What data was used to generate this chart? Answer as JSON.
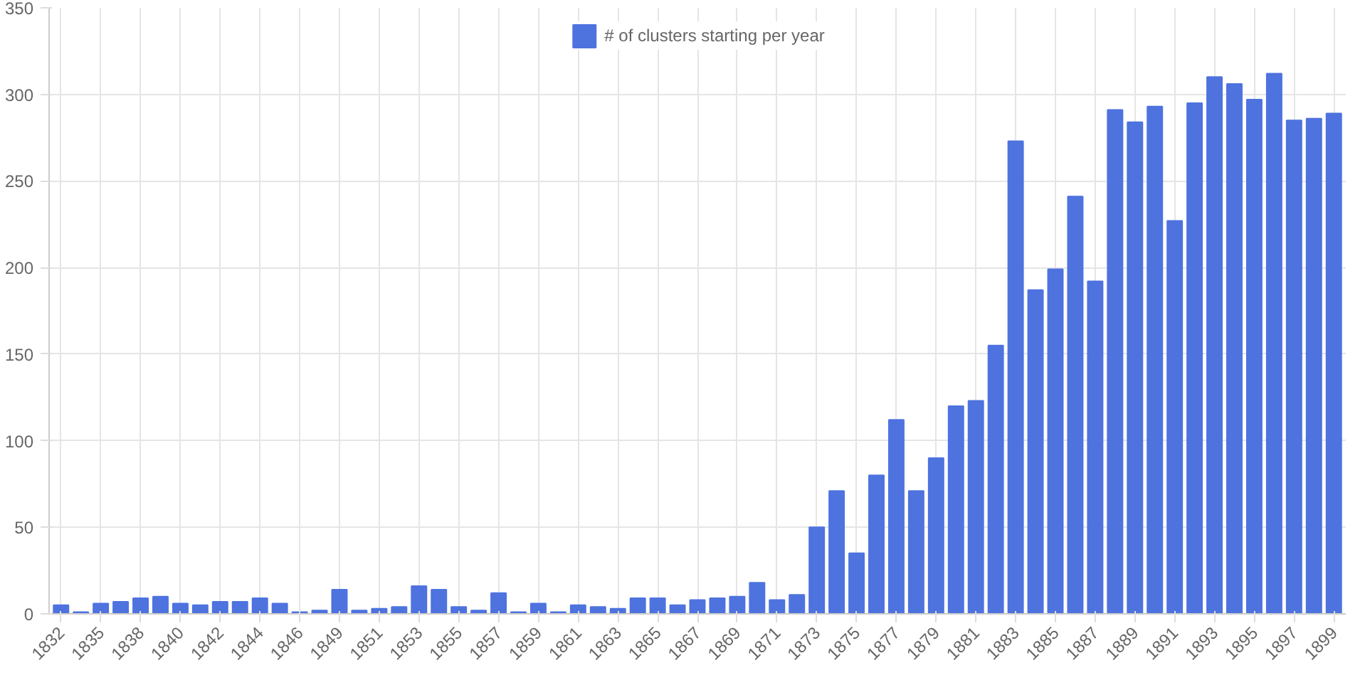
{
  "chart_data": {
    "type": "bar",
    "categories": [
      "1832",
      null,
      "1835",
      null,
      "1838",
      null,
      "1840",
      null,
      "1842",
      null,
      "1844",
      null,
      "1846",
      null,
      "1849",
      null,
      "1851",
      null,
      "1853",
      null,
      "1855",
      null,
      "1857",
      null,
      "1859",
      null,
      "1861",
      null,
      "1863",
      null,
      "1865",
      null,
      "1867",
      null,
      "1869",
      null,
      "1871",
      null,
      "1873",
      null,
      "1875",
      null,
      "1877",
      null,
      "1879",
      null,
      "1881",
      null,
      "1883",
      null,
      "1885",
      null,
      "1887",
      null,
      "1889",
      null,
      "1891",
      null,
      "1893",
      null,
      "1895",
      null,
      "1897",
      null,
      "1899"
    ],
    "series": [
      {
        "name": "# of clusters starting per year",
        "color": "#4e73df",
        "values": [
          5,
          1,
          6,
          7,
          9,
          10,
          6,
          5,
          7,
          7,
          9,
          6,
          1,
          2,
          14,
          2,
          3,
          4,
          16,
          14,
          4,
          2,
          12,
          1,
          6,
          1,
          5,
          4,
          3,
          9,
          9,
          5,
          8,
          9,
          10,
          18,
          8,
          11,
          50,
          71,
          35,
          80,
          112,
          71,
          90,
          120,
          123,
          155,
          273,
          187,
          199,
          241,
          192,
          291,
          284,
          293,
          227,
          295,
          310,
          306,
          297,
          312,
          285,
          286,
          289
        ]
      }
    ],
    "ylim": [
      0,
      350
    ],
    "yticks": [
      0,
      50,
      100,
      150,
      200,
      250,
      300,
      350
    ],
    "grid": true,
    "legend": "top"
  }
}
